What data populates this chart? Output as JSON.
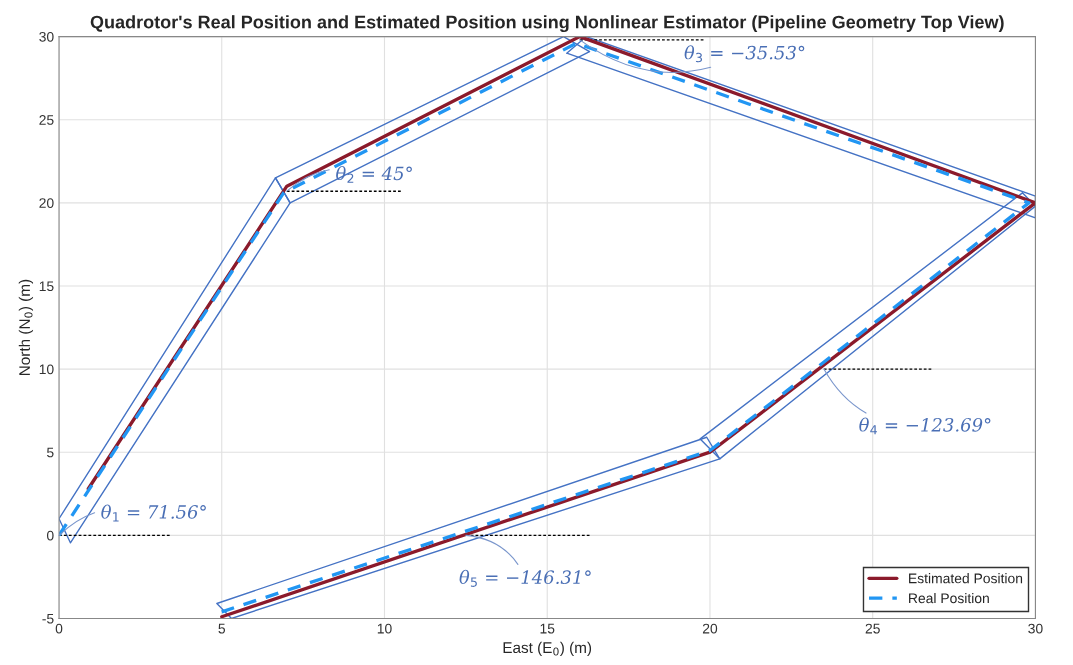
{
  "chart_data": {
    "type": "line",
    "title": "Quadrotor's Real Position and Estimated Position using Nonlinear Estimator (Pipeline Geometry Top View)",
    "xlabel": "East (E$_{0}$) (m)",
    "ylabel": "North (N$_{0}$) (m)",
    "xlim": [
      0,
      30
    ],
    "ylim": [
      -5,
      30
    ],
    "xticks": [
      0,
      5,
      10,
      15,
      20,
      25,
      30
    ],
    "yticks": [
      -5,
      0,
      5,
      10,
      15,
      20,
      25,
      30
    ],
    "grid": true,
    "legend": "bottom right",
    "series": [
      {
        "color": "#4472c4",
        "x": [
          0,
          0.35,
          null,
          0.35,
          7.1,
          null,
          6.65,
          7.1,
          null,
          0,
          6.65
        ],
        "values": [
          1.0,
          -0.45,
          null,
          -0.45,
          20.0,
          null,
          21.5,
          20.0,
          null,
          1.0,
          21.5
        ],
        "line_style": "solid"
      },
      {
        "color": "#4472c4",
        "x": [
          6.65,
          15.5,
          null,
          15.5,
          16.3,
          null,
          7.1,
          16.3,
          null,
          6.65,
          7.1
        ],
        "values": [
          21.5,
          30,
          null,
          30,
          29.1,
          null,
          20.0,
          29.1,
          null,
          21.5,
          20.0
        ],
        "line_style": "solid"
      },
      {
        "color": "#4472c4",
        "x": [
          16.2,
          30,
          null,
          30,
          30,
          null,
          15.6,
          30,
          null,
          15.6,
          16.2
        ],
        "values": [
          30,
          20.4,
          null,
          20.4,
          19.1,
          null,
          29.0,
          19.1,
          null,
          29.0,
          30
        ],
        "line_style": "solid"
      },
      {
        "color": "#4472c4",
        "x": [
          29.6,
          30,
          null,
          20.3,
          30,
          null,
          19.7,
          20.3,
          null,
          19.7,
          29.6
        ],
        "values": [
          20.6,
          19.8,
          null,
          4.6,
          19.8,
          null,
          5.8,
          4.6,
          null,
          5.8,
          20.6
        ],
        "line_style": "solid"
      },
      {
        "color": "#4472c4",
        "x": [
          19.9,
          20.3,
          null,
          5.3,
          20.3,
          null,
          4.85,
          5.3,
          null,
          4.85,
          19.9
        ],
        "values": [
          5.9,
          4.6,
          null,
          -5,
          4.6,
          null,
          -4.1,
          -5,
          null,
          -4.1,
          5.9
        ],
        "line_style": "solid"
      },
      {
        "color": "#000000",
        "x": [
          0,
          3.4
        ],
        "values": [
          0,
          0
        ],
        "line_style": "dashed"
      },
      {
        "color": "#000000",
        "x": [
          7,
          10.5
        ],
        "values": [
          20.7,
          20.7
        ],
        "line_style": "dashed"
      },
      {
        "color": "#000000",
        "x": [
          16,
          19.8
        ],
        "values": [
          29.8,
          29.8
        ],
        "line_style": "dashed"
      },
      {
        "color": "#000000",
        "x": [
          23.5,
          26.8
        ],
        "values": [
          10,
          10
        ],
        "line_style": "dashed"
      },
      {
        "color": "#000000",
        "x": [
          12.5,
          16.3
        ],
        "values": [
          0,
          0
        ],
        "line_style": "dashed"
      },
      {
        "name": "Estimated Position",
        "color": "#8b1a2b",
        "x": [
          0.9,
          7,
          16,
          30,
          20,
          5
        ],
        "values": [
          2.8,
          21,
          30,
          20,
          5,
          -4.9
        ],
        "line_style": "solid"
      },
      {
        "name": "Real Position",
        "color": "#2196f3",
        "x": [
          0,
          6.9,
          15.9,
          29.8,
          20,
          5
        ],
        "values": [
          0,
          20.6,
          29.6,
          20.0,
          5.1,
          -4.6
        ],
        "line_style": "dashed"
      }
    ],
    "annotations": [
      {
        "text": "θ$_{1}$ = 71.56°",
        "x": 0,
        "y": 0
      },
      {
        "text": "θ$_{2}$ = 45°",
        "x": 7,
        "y": 20.7
      },
      {
        "text": "θ$_{3}$ = −35.53°",
        "x": 16,
        "y": 29.8
      },
      {
        "text": "θ$_{4}$ = −123.69°",
        "x": 23.5,
        "y": 10
      },
      {
        "text": "θ$_{5}$ = −146.31°",
        "x": 12.5,
        "y": 0
      }
    ]
  }
}
